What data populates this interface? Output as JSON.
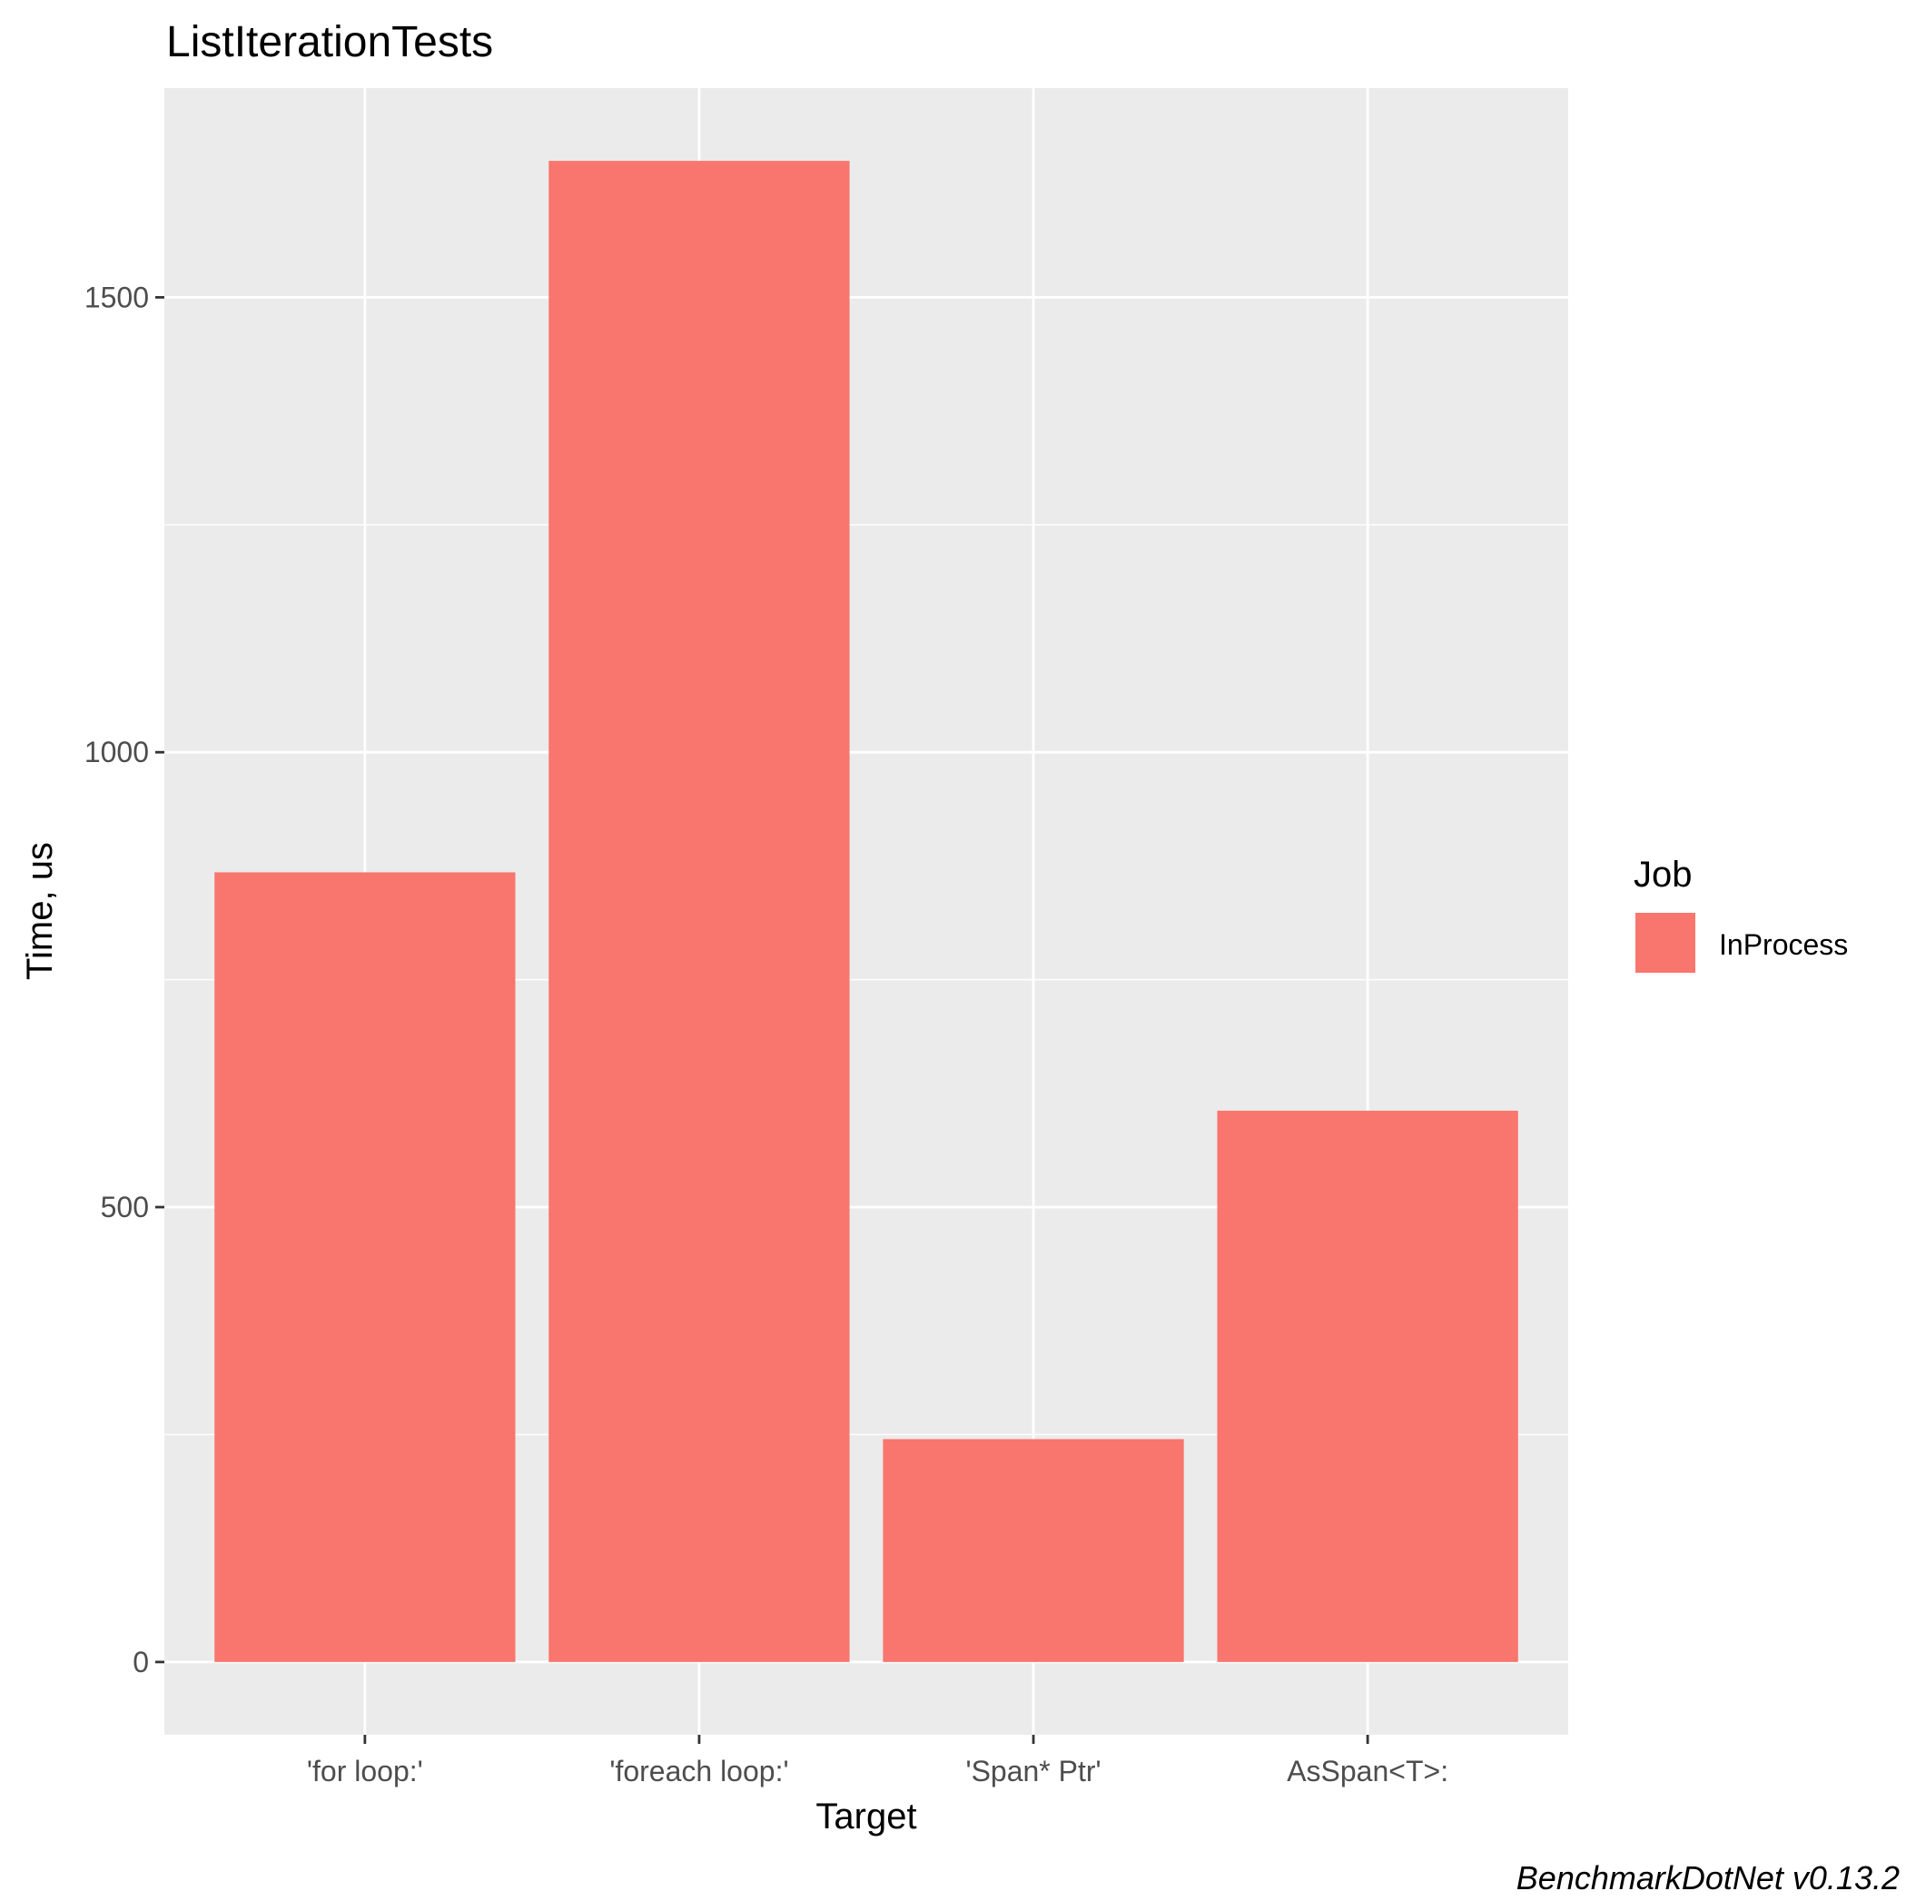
{
  "chart_data": {
    "type": "bar",
    "title": "ListIterationTests",
    "xlabel": "Target",
    "ylabel": "Time, us",
    "categories": [
      "'for loop:'",
      "'foreach loop:'",
      "'Span* Ptr'",
      "AsSpan<T>:"
    ],
    "series": [
      {
        "name": "InProcess",
        "values": [
          868,
          1650,
          245,
          606
        ]
      }
    ],
    "ylim": [
      -80,
      1730
    ],
    "yticks": [
      0,
      500,
      1000,
      1500
    ],
    "grid": true,
    "legend": {
      "title": "Job",
      "placement": "right"
    },
    "caption": "BenchmarkDotNet v0.13.2",
    "colors": {
      "bar": "#F8766D",
      "panel": "#EBEBEB",
      "grid": "#FFFFFF",
      "tick_text": "#4D4D4D",
      "tick_mark": "#333333"
    }
  }
}
